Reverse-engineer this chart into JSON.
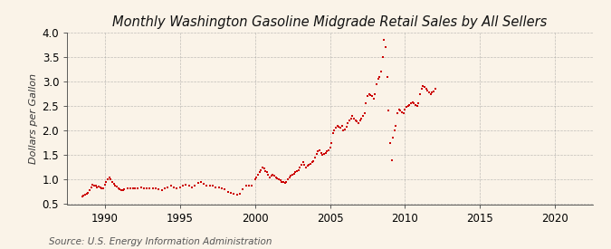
{
  "title": "Monthly Washington Gasoline Midgrade Retail Sales by All Sellers",
  "ylabel": "Dollars per Gallon",
  "source": "Source: U.S. Energy Information Administration",
  "background_color": "#faf3e8",
  "dot_color": "#cc0000",
  "ylim": [
    0.5,
    4.0
  ],
  "xlim": [
    1987.5,
    2022.5
  ],
  "yticks": [
    0.5,
    1.0,
    1.5,
    2.0,
    2.5,
    3.0,
    3.5,
    4.0
  ],
  "xticks": [
    1990,
    1995,
    2000,
    2005,
    2010,
    2015,
    2020
  ],
  "grid_color": "#999999",
  "title_fontsize": 10.5,
  "label_fontsize": 8,
  "tick_fontsize": 8.5,
  "source_fontsize": 7.5,
  "data": [
    [
      1988.5,
      0.65
    ],
    [
      1988.6,
      0.68
    ],
    [
      1988.7,
      0.7
    ],
    [
      1988.8,
      0.72
    ],
    [
      1988.9,
      0.73
    ],
    [
      1989.0,
      0.78
    ],
    [
      1989.1,
      0.85
    ],
    [
      1989.2,
      0.9
    ],
    [
      1989.3,
      0.88
    ],
    [
      1989.4,
      0.87
    ],
    [
      1989.5,
      0.85
    ],
    [
      1989.6,
      0.86
    ],
    [
      1989.7,
      0.84
    ],
    [
      1989.8,
      0.83
    ],
    [
      1989.9,
      0.82
    ],
    [
      1990.0,
      0.9
    ],
    [
      1990.1,
      0.95
    ],
    [
      1990.2,
      1.0
    ],
    [
      1990.3,
      1.05
    ],
    [
      1990.4,
      1.0
    ],
    [
      1990.5,
      0.95
    ],
    [
      1990.6,
      0.92
    ],
    [
      1990.7,
      0.88
    ],
    [
      1990.8,
      0.86
    ],
    [
      1990.9,
      0.82
    ],
    [
      1991.0,
      0.8
    ],
    [
      1991.1,
      0.78
    ],
    [
      1991.2,
      0.79
    ],
    [
      1991.3,
      0.8
    ],
    [
      1991.5,
      0.82
    ],
    [
      1991.7,
      0.83
    ],
    [
      1991.9,
      0.82
    ],
    [
      1992.0,
      0.82
    ],
    [
      1992.2,
      0.83
    ],
    [
      1992.4,
      0.84
    ],
    [
      1992.6,
      0.83
    ],
    [
      1992.8,
      0.83
    ],
    [
      1993.0,
      0.82
    ],
    [
      1993.2,
      0.83
    ],
    [
      1993.4,
      0.82
    ],
    [
      1993.6,
      0.8
    ],
    [
      1993.8,
      0.79
    ],
    [
      1994.0,
      0.83
    ],
    [
      1994.2,
      0.85
    ],
    [
      1994.4,
      0.88
    ],
    [
      1994.6,
      0.85
    ],
    [
      1994.8,
      0.83
    ],
    [
      1995.0,
      0.85
    ],
    [
      1995.2,
      0.88
    ],
    [
      1995.4,
      0.9
    ],
    [
      1995.6,
      0.87
    ],
    [
      1995.8,
      0.85
    ],
    [
      1996.0,
      0.88
    ],
    [
      1996.2,
      0.93
    ],
    [
      1996.4,
      0.95
    ],
    [
      1996.6,
      0.92
    ],
    [
      1996.8,
      0.88
    ],
    [
      1997.0,
      0.88
    ],
    [
      1997.2,
      0.87
    ],
    [
      1997.4,
      0.85
    ],
    [
      1997.6,
      0.84
    ],
    [
      1997.8,
      0.83
    ],
    [
      1998.0,
      0.8
    ],
    [
      1998.2,
      0.75
    ],
    [
      1998.4,
      0.73
    ],
    [
      1998.6,
      0.72
    ],
    [
      1998.8,
      0.7
    ],
    [
      1999.0,
      0.72
    ],
    [
      1999.2,
      0.8
    ],
    [
      1999.4,
      0.87
    ],
    [
      1999.6,
      0.88
    ],
    [
      1999.8,
      0.87
    ],
    [
      2000.0,
      1.0
    ],
    [
      2000.1,
      1.05
    ],
    [
      2000.2,
      1.1
    ],
    [
      2000.3,
      1.15
    ],
    [
      2000.4,
      1.2
    ],
    [
      2000.5,
      1.25
    ],
    [
      2000.6,
      1.22
    ],
    [
      2000.7,
      1.18
    ],
    [
      2000.8,
      1.15
    ],
    [
      2000.9,
      1.1
    ],
    [
      2001.0,
      1.05
    ],
    [
      2001.1,
      1.08
    ],
    [
      2001.2,
      1.1
    ],
    [
      2001.3,
      1.08
    ],
    [
      2001.4,
      1.05
    ],
    [
      2001.5,
      1.03
    ],
    [
      2001.6,
      1.0
    ],
    [
      2001.7,
      0.98
    ],
    [
      2001.8,
      0.96
    ],
    [
      2001.9,
      0.95
    ],
    [
      2002.0,
      0.93
    ],
    [
      2002.1,
      0.95
    ],
    [
      2002.2,
      1.0
    ],
    [
      2002.3,
      1.05
    ],
    [
      2002.4,
      1.08
    ],
    [
      2002.5,
      1.1
    ],
    [
      2002.6,
      1.12
    ],
    [
      2002.7,
      1.15
    ],
    [
      2002.8,
      1.18
    ],
    [
      2002.9,
      1.2
    ],
    [
      2003.0,
      1.25
    ],
    [
      2003.1,
      1.3
    ],
    [
      2003.2,
      1.35
    ],
    [
      2003.3,
      1.3
    ],
    [
      2003.4,
      1.25
    ],
    [
      2003.5,
      1.28
    ],
    [
      2003.6,
      1.3
    ],
    [
      2003.7,
      1.32
    ],
    [
      2003.8,
      1.35
    ],
    [
      2003.9,
      1.38
    ],
    [
      2004.0,
      1.45
    ],
    [
      2004.1,
      1.52
    ],
    [
      2004.2,
      1.58
    ],
    [
      2004.3,
      1.6
    ],
    [
      2004.4,
      1.55
    ],
    [
      2004.5,
      1.5
    ],
    [
      2004.6,
      1.52
    ],
    [
      2004.7,
      1.55
    ],
    [
      2004.8,
      1.58
    ],
    [
      2004.9,
      1.6
    ],
    [
      2005.0,
      1.65
    ],
    [
      2005.1,
      1.75
    ],
    [
      2005.2,
      1.95
    ],
    [
      2005.3,
      2.0
    ],
    [
      2005.4,
      2.05
    ],
    [
      2005.5,
      2.1
    ],
    [
      2005.6,
      2.08
    ],
    [
      2005.7,
      2.05
    ],
    [
      2005.8,
      2.1
    ],
    [
      2005.9,
      2.0
    ],
    [
      2006.0,
      2.02
    ],
    [
      2006.1,
      2.08
    ],
    [
      2006.2,
      2.15
    ],
    [
      2006.3,
      2.2
    ],
    [
      2006.4,
      2.25
    ],
    [
      2006.5,
      2.3
    ],
    [
      2006.6,
      2.25
    ],
    [
      2006.7,
      2.2
    ],
    [
      2006.8,
      2.18
    ],
    [
      2006.9,
      2.15
    ],
    [
      2007.0,
      2.2
    ],
    [
      2007.1,
      2.25
    ],
    [
      2007.2,
      2.3
    ],
    [
      2007.3,
      2.35
    ],
    [
      2007.4,
      2.55
    ],
    [
      2007.5,
      2.7
    ],
    [
      2007.6,
      2.75
    ],
    [
      2007.7,
      2.72
    ],
    [
      2007.8,
      2.7
    ],
    [
      2007.9,
      2.65
    ],
    [
      2008.0,
      2.75
    ],
    [
      2008.1,
      2.95
    ],
    [
      2008.2,
      3.05
    ],
    [
      2008.3,
      3.1
    ],
    [
      2008.4,
      3.2
    ],
    [
      2008.5,
      3.5
    ],
    [
      2008.6,
      3.85
    ],
    [
      2008.7,
      3.7
    ],
    [
      2008.8,
      3.1
    ],
    [
      2008.9,
      2.4
    ],
    [
      2009.0,
      1.75
    ],
    [
      2009.1,
      1.4
    ],
    [
      2009.2,
      1.85
    ],
    [
      2009.3,
      2.0
    ],
    [
      2009.4,
      2.1
    ],
    [
      2009.5,
      2.35
    ],
    [
      2009.6,
      2.42
    ],
    [
      2009.7,
      2.4
    ],
    [
      2009.8,
      2.38
    ],
    [
      2009.9,
      2.35
    ],
    [
      2010.0,
      2.42
    ],
    [
      2010.1,
      2.48
    ],
    [
      2010.2,
      2.5
    ],
    [
      2010.3,
      2.52
    ],
    [
      2010.4,
      2.55
    ],
    [
      2010.5,
      2.58
    ],
    [
      2010.6,
      2.55
    ],
    [
      2010.7,
      2.52
    ],
    [
      2010.8,
      2.5
    ],
    [
      2010.9,
      2.55
    ],
    [
      2011.0,
      2.75
    ],
    [
      2011.1,
      2.85
    ],
    [
      2011.2,
      2.9
    ],
    [
      2011.3,
      2.88
    ],
    [
      2011.4,
      2.85
    ],
    [
      2011.5,
      2.82
    ],
    [
      2011.6,
      2.78
    ],
    [
      2011.7,
      2.75
    ],
    [
      2011.8,
      2.78
    ],
    [
      2011.9,
      2.8
    ],
    [
      2012.0,
      2.85
    ]
  ]
}
